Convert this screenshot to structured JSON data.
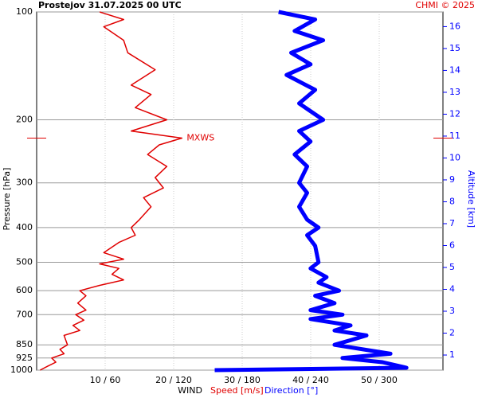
{
  "chart_data": {
    "type": "profile",
    "title": "Prostejov   31.07.2025 00 UTC",
    "credit": "CHMI © 2025",
    "ylabel": "Pressure [hPa]",
    "y2label": "Altitude [km]",
    "xlabel": "WIND",
    "annotation": "MXWS",
    "log_y": true,
    "grid": true,
    "ylim": [
      100,
      1000
    ],
    "yticks": [
      100,
      200,
      300,
      400,
      500,
      600,
      700,
      850,
      925,
      1000
    ],
    "y2lim": [
      0.31,
      16.67
    ],
    "y2ticks": [
      1,
      2,
      3,
      4,
      5,
      6,
      7,
      8,
      9,
      10,
      11,
      12,
      13,
      14,
      15,
      16
    ],
    "xlim": [
      0,
      59.3
    ],
    "x2lim": [
      0,
      356
    ],
    "xticks": [
      {
        "value": 10,
        "label": "10 / 60"
      },
      {
        "value": 20,
        "label": "20 / 120"
      },
      {
        "value": 30,
        "label": "30 / 180"
      },
      {
        "value": 40,
        "label": "40 / 240"
      },
      {
        "value": 50,
        "label": "50 / 300"
      }
    ],
    "series": [
      {
        "name": "Speed [m/s]",
        "color": "#e00000",
        "y": [
          1000,
          975,
          950,
          925,
          900,
          875,
          850,
          800,
          775,
          750,
          725,
          700,
          680,
          650,
          620,
          600,
          580,
          560,
          540,
          520,
          505,
          490,
          470,
          440,
          420,
          400,
          380,
          350,
          330,
          310,
          290,
          270,
          250,
          235,
          225,
          215,
          200,
          185,
          170,
          160,
          145,
          130,
          120,
          110,
          105,
          100
        ],
        "values": [
          0.5,
          1.6,
          2.8,
          2.2,
          4,
          3.4,
          4.5,
          4,
          6.3,
          5.3,
          6.9,
          5.7,
          7.2,
          6,
          7.2,
          6.3,
          9.2,
          12.7,
          11,
          12,
          9.2,
          12.7,
          9.8,
          12,
          14.4,
          13.8,
          15,
          16.7,
          15.6,
          18.5,
          17.3,
          19,
          16.2,
          17.9,
          21.2,
          13.8,
          19,
          14.4,
          16.7,
          13.8,
          17.3,
          13.3,
          12.7,
          9.8,
          12.7,
          9.2
        ]
      },
      {
        "name": "Direction [°]",
        "color": "#0000ff",
        "axis": "x2",
        "y": [
          1000,
          985,
          950,
          925,
          900,
          850,
          825,
          800,
          775,
          750,
          720,
          700,
          680,
          650,
          620,
          600,
          570,
          550,
          520,
          500,
          450,
          420,
          400,
          380,
          350,
          320,
          300,
          270,
          250,
          230,
          215,
          200,
          180,
          165,
          150,
          140,
          130,
          120,
          113,
          105,
          100
        ],
        "values": [
          156,
          324,
          303,
          268,
          310,
          261,
          275,
          289,
          261,
          275,
          240,
          268,
          240,
          261,
          244,
          265,
          247,
          254,
          240,
          247,
          244,
          237,
          247,
          237,
          230,
          237,
          230,
          237,
          226,
          240,
          230,
          251,
          230,
          244,
          219,
          240,
          223,
          251,
          226,
          244,
          212
        ]
      }
    ]
  }
}
